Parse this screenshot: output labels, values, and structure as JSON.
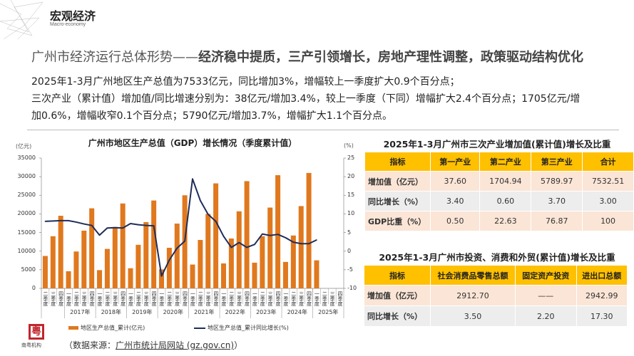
{
  "section": {
    "title": "宏观经济",
    "subtitle": "Macro-economy"
  },
  "headline": {
    "prefix": "广州市经济运行总体形势——",
    "emphasis": "经济稳中提质，三产引领增长，房地产理性调整，政策驱动结构优化"
  },
  "paragraph": [
    "2025年1-3月广州地区生产总值为7533亿元，同比增加3%，增幅较上一季度扩大0.9个百分点；",
    "三次产业（累计值）增加值/同比增速分别为：38亿元/增加3.4%，较上一季度（下同）增幅扩大2.4个百分点；1705亿元/增",
    "加0.6%，增幅收窄0.1个百分点；5790亿元/增加3.7%，增幅扩大1.1个百分点。"
  ],
  "chart_data": {
    "type": "bar+line",
    "title": "广州市地区生产总值（GDP）增长情况（季度累计值）",
    "left_unit": "(亿元)",
    "right_unit": "(%)",
    "left_ylim": [
      0,
      35000
    ],
    "left_ticks": [
      "0",
      "5000",
      "10000",
      "15000",
      "20000",
      "25000",
      "30000",
      "35000"
    ],
    "right_ylim": [
      -10,
      25
    ],
    "right_ticks": [
      "-10",
      "-5",
      "0",
      "5",
      "10",
      "15",
      "20",
      "25"
    ],
    "quarter_labels": [
      "二季度",
      "三季度",
      "四季度",
      "一季度",
      "二季度",
      "三季度",
      "四季度",
      "一季度",
      "二季度",
      "三季度",
      "四季度",
      "一季度",
      "二季度",
      "三季度",
      "四季度",
      "一季度",
      "二季度",
      "三季度",
      "四季度",
      "一季度",
      "二季度",
      "三季度",
      "四季度",
      "一季度",
      "二季度",
      "三季度",
      "四季度",
      "一季度",
      "二季度",
      "三季度",
      "四季度",
      "一季度",
      "二季度",
      "三季度",
      "四季度",
      "一季度",
      "二季度",
      "三季度",
      "四季度"
    ],
    "year_groups": [
      {
        "label": "",
        "start": 0,
        "end": 2
      },
      {
        "label": "2017年",
        "start": 3,
        "end": 6
      },
      {
        "label": "2018年",
        "start": 7,
        "end": 10
      },
      {
        "label": "2019年",
        "start": 11,
        "end": 14
      },
      {
        "label": "2020年",
        "start": 15,
        "end": 18
      },
      {
        "label": "2021年",
        "start": 19,
        "end": 22
      },
      {
        "label": "2022年",
        "start": 23,
        "end": 26
      },
      {
        "label": "2023年",
        "start": 27,
        "end": 30
      },
      {
        "label": "2024年",
        "start": 31,
        "end": 34
      },
      {
        "label": "2025年",
        "start": 35,
        "end": 38
      }
    ],
    "series": [
      {
        "name": "地区生产总值_累计(亿元)",
        "type": "bar",
        "axis": "left",
        "color": "#E0781E",
        "values": [
          8700,
          14000,
          19500,
          4600,
          9900,
          15500,
          21500,
          4900,
          10600,
          16500,
          22800,
          5400,
          11700,
          17800,
          23600,
          5100,
          10900,
          17400,
          25000,
          6400,
          13000,
          20000,
          28200,
          6700,
          13400,
          20700,
          28800,
          6900,
          14000,
          21700,
          30400,
          7100,
          14200,
          22100,
          31000,
          7533
        ]
      },
      {
        "name": "地区生产总值_累计同比增长(%)",
        "type": "line",
        "axis": "right",
        "color": "#1F2D5A",
        "values": [
          8.0,
          8.1,
          8.2,
          8.2,
          7.8,
          7.3,
          6.9,
          4.3,
          6.2,
          6.3,
          6.2,
          7.4,
          7.1,
          6.9,
          6.8,
          -6.7,
          -2.4,
          0.8,
          2.7,
          19.4,
          13.6,
          9.9,
          8.0,
          4.0,
          1.0,
          2.3,
          1.0,
          1.8,
          4.6,
          4.2,
          4.5,
          3.6,
          2.4,
          2.0,
          2.0,
          3.0
        ]
      }
    ],
    "legend": "bottom"
  },
  "source": {
    "label": "（数据来源：",
    "link": "广州市统计局网站 (gz.gov.cn)",
    "close": "）"
  },
  "logo": {
    "text": "南粤机构"
  },
  "table1": {
    "title": "2025年1-3月广州市三次产业增加值(累计值)增长及比重",
    "headers": [
      "指标",
      "第一产业",
      "第二产业",
      "第三产业",
      "合计"
    ],
    "rows": [
      [
        "增加值（亿元）",
        "37.60",
        "1704.94",
        "5789.97",
        "7532.51"
      ],
      [
        "同比增长（%）",
        "3.40",
        "0.60",
        "3.70",
        "3.00"
      ],
      [
        "GDP比重（%）",
        "0.50",
        "22.63",
        "76.87",
        "100"
      ]
    ]
  },
  "table2": {
    "title": "2025年1-3月广州市投资、消费和外贸(累计值)增长及比重",
    "headers": [
      "指标",
      "社会消费品零售总额",
      "固定资产投资",
      "进出口总额"
    ],
    "rows": [
      [
        "增加值（亿元）",
        "2912.70",
        "——",
        "2942.99"
      ],
      [
        "同比增长（%）",
        "3.50",
        "2.20",
        "17.30"
      ]
    ]
  },
  "colors": {
    "header_fill": "#FFC000",
    "row_peach": "#FBE5D6",
    "row_grey": "#EDEDED",
    "bar": "#E0781E",
    "line": "#1F2D5A"
  }
}
